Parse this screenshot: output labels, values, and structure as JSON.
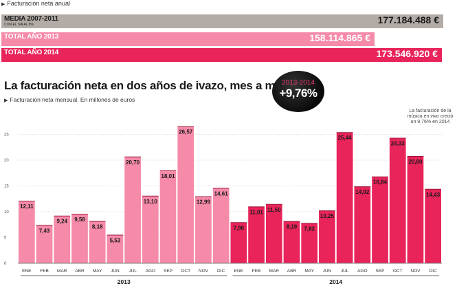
{
  "annual": {
    "title": "Facturación neta anual",
    "rows": [
      {
        "label": "MEDIA 2007-2011",
        "sublabel": "CON EL IVA AL 8%",
        "value": "177.184.488 €",
        "amount": 177184488,
        "color": "#b3aca6",
        "label_color": "#1a1a1a"
      },
      {
        "label": "TOTAL AÑO 2013",
        "sublabel": "",
        "value": "158.114.865 €",
        "amount": 158114865,
        "color": "#f58aa9",
        "label_color": "#ffffff"
      },
      {
        "label": "TOTAL AÑO 2014",
        "sublabel": "",
        "value": "173.546.920 €",
        "amount": 173546920,
        "color": "#e8245a",
        "label_color": "#ffffff"
      }
    ]
  },
  "main_title": "La facturación neta en dos años de ivazo, mes a mes",
  "monthly_subtitle": "Facturación neta mensual. En millones de euros",
  "badge": {
    "years": "2013-2014",
    "percent": "+9,76%"
  },
  "note": "La facturación de la música en vivo creció un 9,76% en 2014",
  "chart_data": {
    "type": "bar",
    "title": "La facturación neta en dos años de ivazo, mes a mes",
    "subtitle": "Facturación neta mensual. En millones de euros",
    "ylim": [
      0,
      30
    ],
    "yticks": [
      0,
      5,
      10,
      15,
      20,
      25
    ],
    "grid": true,
    "categories": [
      "ENE",
      "FEB",
      "MAR",
      "ABR",
      "MAY",
      "JUN",
      "JUL",
      "AGO",
      "SEP",
      "OCT",
      "NOV",
      "DIC"
    ],
    "series": [
      {
        "name": "2013",
        "color": "#f58aa9",
        "values": [
          12.11,
          7.43,
          9.24,
          9.58,
          8.18,
          5.53,
          20.7,
          13.1,
          18.01,
          26.57,
          12.99,
          14.61
        ],
        "labels": [
          "12,11",
          "7,43",
          "9,24",
          "9,58",
          "8,18",
          "5,53",
          "20,70",
          "13,10",
          "18,01",
          "26,57",
          "12,99",
          "14,61"
        ]
      },
      {
        "name": "2014",
        "color": "#e8245a",
        "values": [
          7.96,
          11.01,
          11.5,
          8.19,
          7.82,
          10.25,
          25.44,
          14.92,
          16.84,
          24.33,
          20.8,
          14.43
        ],
        "labels": [
          "7,96",
          "11,01",
          "11,50",
          "8,19",
          "7,82",
          "10,25",
          "25,44",
          "14,92",
          "16,84",
          "24,33",
          "20,80",
          "14,43"
        ]
      }
    ]
  }
}
